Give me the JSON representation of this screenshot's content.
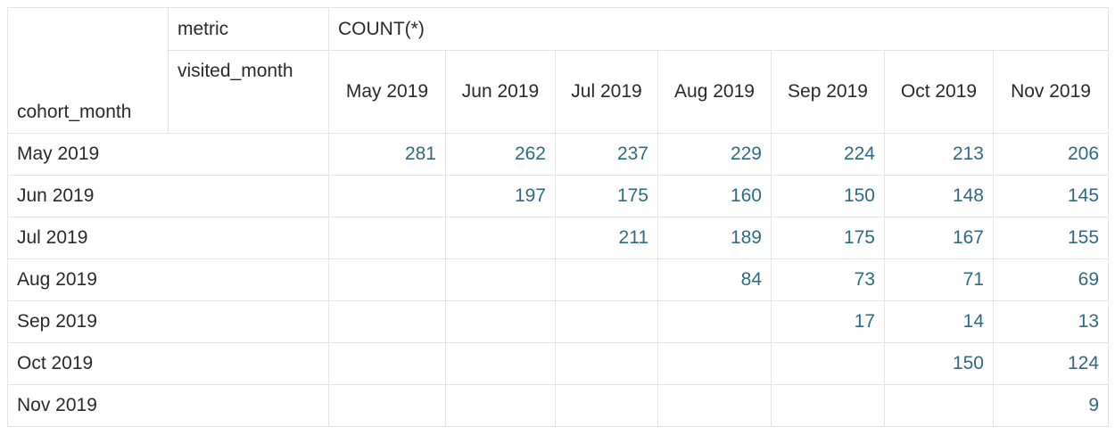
{
  "headers": {
    "metric_label": "metric",
    "metric_value": "COUNT(*)",
    "column_dim_label": "visited_month",
    "row_dim_label": "cohort_month"
  },
  "columns": [
    "May 2019",
    "Jun 2019",
    "Jul 2019",
    "Aug 2019",
    "Sep 2019",
    "Oct 2019",
    "Nov 2019"
  ],
  "rows": [
    {
      "label": "May 2019",
      "values": [
        "281",
        "262",
        "237",
        "229",
        "224",
        "213",
        "206"
      ]
    },
    {
      "label": "Jun 2019",
      "values": [
        "",
        "197",
        "175",
        "160",
        "150",
        "148",
        "145"
      ]
    },
    {
      "label": "Jul 2019",
      "values": [
        "",
        "",
        "211",
        "189",
        "175",
        "167",
        "155"
      ]
    },
    {
      "label": "Aug 2019",
      "values": [
        "",
        "",
        "",
        "84",
        "73",
        "71",
        "69"
      ]
    },
    {
      "label": "Sep 2019",
      "values": [
        "",
        "",
        "",
        "",
        "17",
        "14",
        "13"
      ]
    },
    {
      "label": "Oct 2019",
      "values": [
        "",
        "",
        "",
        "",
        "",
        "150",
        "124"
      ]
    },
    {
      "label": "Nov 2019",
      "values": [
        "",
        "",
        "",
        "",
        "",
        "",
        "9"
      ]
    }
  ],
  "colors": {
    "value_text": "#2f6a83",
    "grid": "#e3e3e3"
  }
}
